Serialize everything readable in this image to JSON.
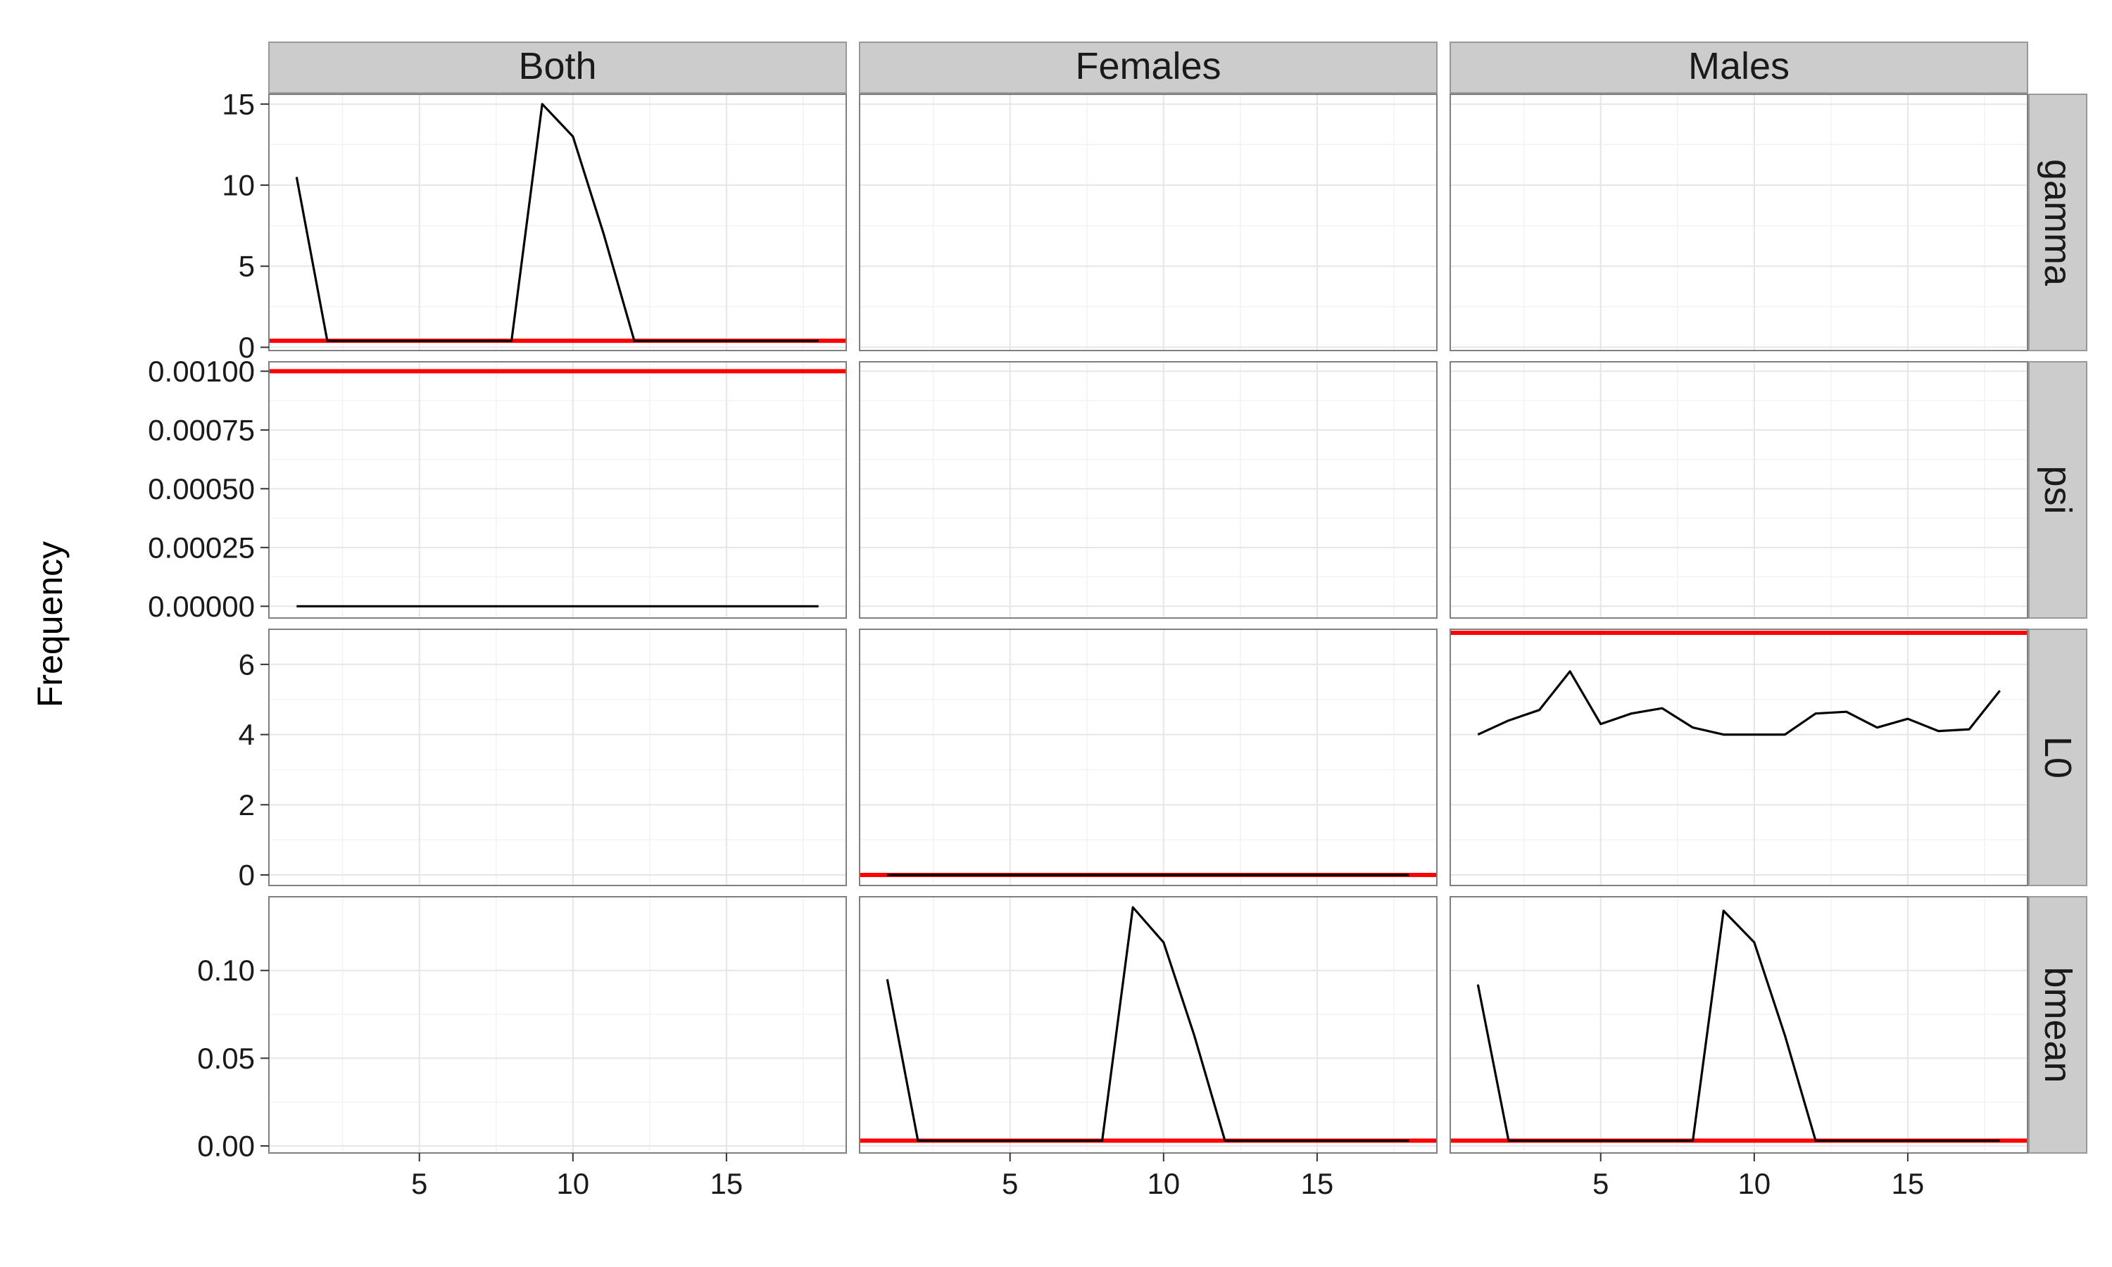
{
  "chart_data": {
    "type": "line",
    "facet_layout": "grid",
    "columns": [
      "Both",
      "Females",
      "Males"
    ],
    "rows": [
      "gamma",
      "psi",
      "L0",
      "bmean"
    ],
    "xlabel": "",
    "ylabel": "Frequency",
    "x_ticks": [
      5,
      10,
      15
    ],
    "xlim": [
      0.1,
      18.9
    ],
    "grid": true,
    "reference_line_color": "#ff0000",
    "series_line_color": "#000000",
    "row_scales": {
      "gamma": {
        "ylim": [
          -0.2,
          15.6
        ],
        "ticks": [
          0,
          5,
          10,
          15
        ],
        "tick_labels": [
          "0",
          "5",
          "10",
          "15"
        ]
      },
      "psi": {
        "ylim": [
          -5e-05,
          0.00104
        ],
        "ticks": [
          0,
          0.00025,
          0.0005,
          0.00075,
          0.001
        ],
        "tick_labels": [
          "0.00000",
          "0.00025",
          "0.00050",
          "0.00075",
          "0.00100"
        ]
      },
      "L0": {
        "ylim": [
          -0.3,
          7.0
        ],
        "ticks": [
          0,
          2,
          4,
          6
        ],
        "tick_labels": [
          "0",
          "2",
          "4",
          "6"
        ]
      },
      "bmean": {
        "ylim": [
          -0.004,
          0.142
        ],
        "ticks": [
          0,
          0.05,
          0.1
        ],
        "tick_labels": [
          "0.00",
          "0.05",
          "0.10"
        ]
      }
    },
    "panels": [
      {
        "row": "gamma",
        "col": "Both",
        "reference": 0.4,
        "x": [
          1,
          2,
          3,
          4,
          5,
          6,
          7,
          8,
          9,
          10,
          11,
          12,
          13,
          14,
          15,
          16,
          17,
          18
        ],
        "y": [
          10.5,
          0.4,
          0.4,
          0.4,
          0.4,
          0.4,
          0.4,
          0.4,
          15.0,
          13.0,
          7.0,
          0.4,
          0.4,
          0.4,
          0.4,
          0.4,
          0.4,
          0.4
        ]
      },
      {
        "row": "gamma",
        "col": "Females",
        "reference": null,
        "x": [],
        "y": []
      },
      {
        "row": "gamma",
        "col": "Males",
        "reference": null,
        "x": [],
        "y": []
      },
      {
        "row": "psi",
        "col": "Both",
        "reference": 0.001,
        "x": [
          1,
          2,
          3,
          4,
          5,
          6,
          7,
          8,
          9,
          10,
          11,
          12,
          13,
          14,
          15,
          16,
          17,
          18
        ],
        "y": [
          0,
          0,
          0,
          0,
          0,
          0,
          0,
          0,
          0,
          0,
          0,
          0,
          0,
          0,
          0,
          0,
          0,
          0
        ]
      },
      {
        "row": "psi",
        "col": "Females",
        "reference": null,
        "x": [],
        "y": []
      },
      {
        "row": "psi",
        "col": "Males",
        "reference": null,
        "x": [],
        "y": []
      },
      {
        "row": "L0",
        "col": "Both",
        "reference": null,
        "x": [],
        "y": []
      },
      {
        "row": "L0",
        "col": "Females",
        "reference": 0.0,
        "x": [
          1,
          2,
          3,
          4,
          5,
          6,
          7,
          8,
          9,
          10,
          11,
          12,
          13,
          14,
          15,
          16,
          17,
          18
        ],
        "y": [
          0,
          0,
          0,
          0,
          0,
          0,
          0,
          0,
          0,
          0,
          0,
          0,
          0,
          0,
          0,
          0,
          0,
          0
        ]
      },
      {
        "row": "L0",
        "col": "Males",
        "reference": 6.9,
        "x": [
          1,
          2,
          3,
          4,
          5,
          6,
          7,
          8,
          9,
          10,
          11,
          12,
          13,
          14,
          15,
          16,
          17,
          18
        ],
        "y": [
          4.0,
          4.4,
          4.7,
          5.8,
          4.3,
          4.6,
          4.75,
          4.2,
          4.0,
          4.0,
          4.0,
          4.6,
          4.65,
          4.2,
          4.45,
          4.1,
          4.15,
          5.25
        ]
      },
      {
        "row": "bmean",
        "col": "Both",
        "reference": null,
        "x": [],
        "y": []
      },
      {
        "row": "bmean",
        "col": "Females",
        "reference": 0.003,
        "x": [
          1,
          2,
          3,
          4,
          5,
          6,
          7,
          8,
          9,
          10,
          11,
          12,
          13,
          14,
          15,
          16,
          17,
          18
        ],
        "y": [
          0.095,
          0.003,
          0.003,
          0.003,
          0.003,
          0.003,
          0.003,
          0.003,
          0.136,
          0.116,
          0.063,
          0.003,
          0.003,
          0.003,
          0.003,
          0.003,
          0.003,
          0.003
        ]
      },
      {
        "row": "bmean",
        "col": "Males",
        "reference": 0.003,
        "x": [
          1,
          2,
          3,
          4,
          5,
          6,
          7,
          8,
          9,
          10,
          11,
          12,
          13,
          14,
          15,
          16,
          17,
          18
        ],
        "y": [
          0.092,
          0.003,
          0.003,
          0.003,
          0.003,
          0.003,
          0.003,
          0.003,
          0.134,
          0.116,
          0.063,
          0.003,
          0.003,
          0.003,
          0.003,
          0.003,
          0.003,
          0.003
        ]
      }
    ]
  }
}
